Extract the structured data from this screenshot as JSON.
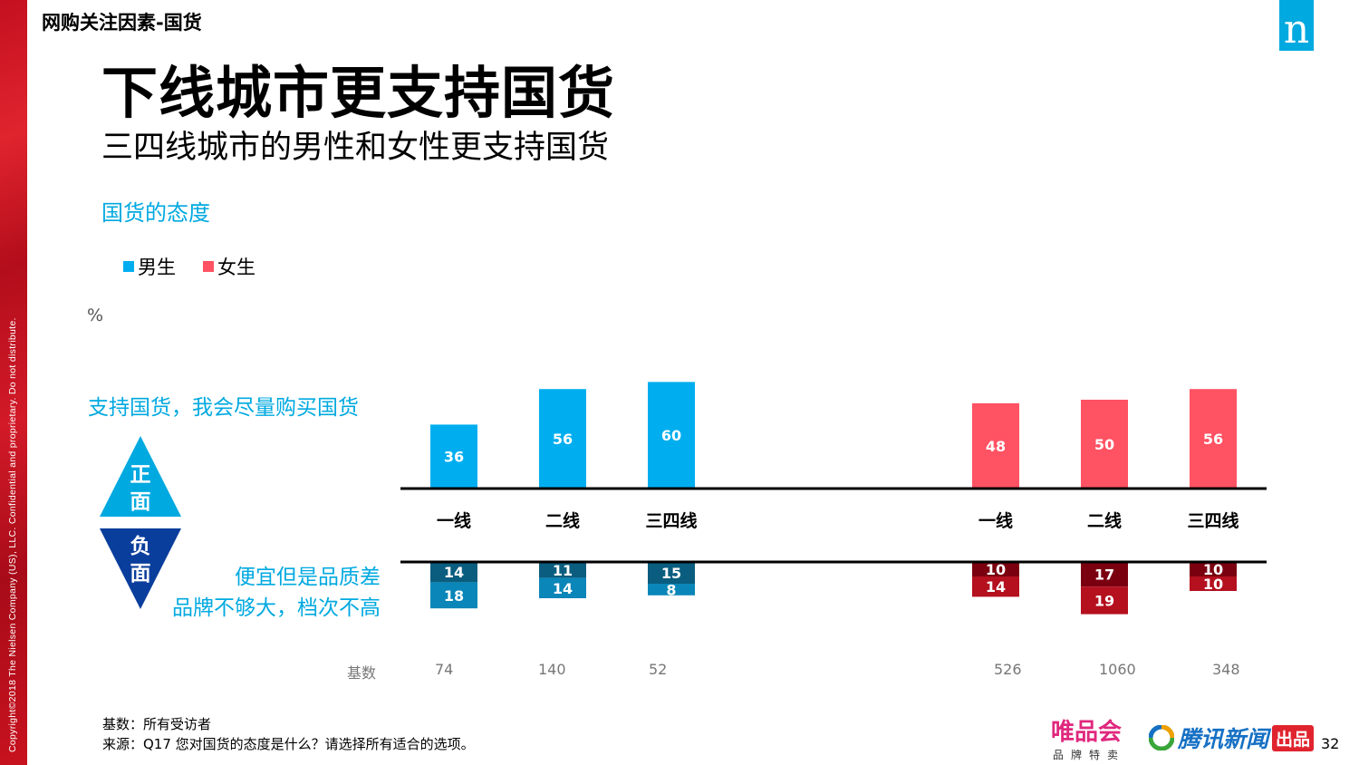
{
  "header": {
    "section_label": "网购关注因素-国货",
    "title": "下线城市更支持国货",
    "subtitle": "三四线城市的男性和女性更支持国货",
    "page_number": "32"
  },
  "copyright": "Copyright©2018 The Nielsen Company (US), LLC. Confidential and proprietary. Do not distribute.",
  "logos": {
    "nielsen": "n",
    "vip_main": "唯品会",
    "vip_sub": "品牌特卖",
    "tencent": "腾讯新闻",
    "tencent_badge": "出品"
  },
  "chart_data": {
    "type": "bar",
    "title": "国货的态度",
    "ylabel": "%",
    "legend": [
      {
        "name": "男生",
        "color": "#00aeef"
      },
      {
        "name": "女生",
        "color": "#ff5263"
      }
    ],
    "positive_label": "支持国货，我会尽量购买国货",
    "negative_labels": [
      "便宜但是品质差",
      "品牌不够大，档次不高"
    ],
    "diamond_top": "正面",
    "diamond_bottom": "负面",
    "groups": [
      {
        "name": "男生",
        "categories": [
          "一线",
          "二线",
          "三四线"
        ],
        "positive": [
          36,
          56,
          60
        ],
        "negative_1": [
          14,
          11,
          15
        ],
        "negative_2": [
          18,
          14,
          8
        ],
        "base": [
          "74",
          "140",
          "52"
        ]
      },
      {
        "name": "女生",
        "categories": [
          "一线",
          "二线",
          "三四线"
        ],
        "positive": [
          48,
          50,
          56
        ],
        "negative_1": [
          10,
          17,
          10
        ],
        "negative_2": [
          14,
          19,
          10
        ],
        "base": [
          "526",
          "1060",
          "348"
        ]
      }
    ],
    "colors": {
      "male_pos": "#00aeef",
      "male_neg1": "#0a5d7f",
      "male_neg2": "#0a86b8",
      "female_pos": "#ff5263",
      "female_neg1": "#7a0010",
      "female_neg2": "#b4101e",
      "diamond_top": "#00a9e0",
      "diamond_bottom": "#0a3e9c"
    },
    "base_label": "基数"
  },
  "footnotes": {
    "base": "基数：所有受访者",
    "source": "来源：Q17 您对国货的态度是什么？请选择所有适合的选项。"
  }
}
